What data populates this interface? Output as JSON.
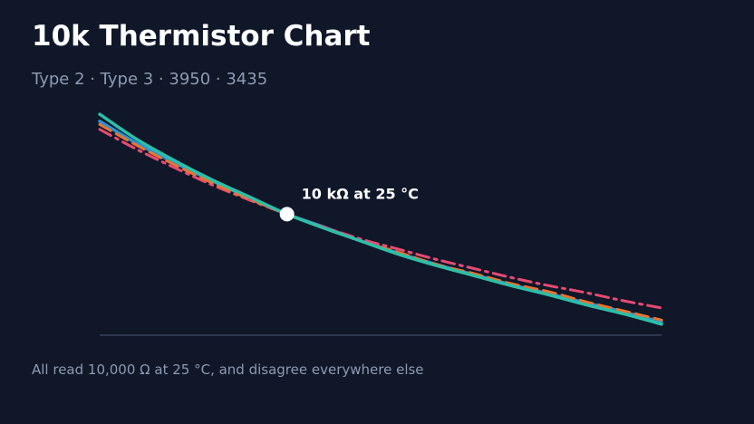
{
  "header": {
    "title": "10k Thermistor Chart",
    "subtitle": "Type 2 · Type 3 · 3950 · 3435"
  },
  "footer": {
    "caption": "All read 10,000 Ω at 25 °C, and disagree everywhere else"
  },
  "chart_data": {
    "type": "line",
    "title": "10k Thermistor Chart",
    "subtitle": "Type 2 · Type 3 · 3950 · 3435",
    "xlabel": "",
    "ylabel": "",
    "grid": false,
    "legend": "none",
    "note": "All read 10,000 Ω at 25 °C, and disagree everywhere else",
    "x": [
      0,
      5,
      10,
      15,
      20,
      25,
      30,
      35,
      40,
      45,
      50,
      55,
      60,
      65,
      70,
      75
    ],
    "xlim": [
      0,
      75
    ],
    "ylim": [
      0,
      22
    ],
    "series": [
      {
        "values": [
          21.9,
          19.4,
          17.3,
          15.4,
          13.7,
          12.0,
          10.6,
          9.3,
          8.0,
          6.9,
          5.9,
          4.9,
          4.0,
          3.0,
          2.1,
          1.1
        ],
        "color": "#2bbfa9",
        "style": "solid"
      },
      {
        "values": [
          20.9,
          18.8,
          16.9,
          15.1,
          13.5,
          12.0,
          10.6,
          9.3,
          8.2,
          7.0,
          6.1,
          5.1,
          4.3,
          3.3,
          2.4,
          1.5
        ],
        "color": "#e8742e",
        "style": "dashed"
      },
      {
        "values": [
          20.4,
          18.4,
          16.6,
          14.9,
          13.4,
          12.0,
          10.7,
          9.5,
          8.5,
          7.5,
          6.6,
          5.7,
          4.9,
          4.2,
          3.4,
          2.7
        ],
        "color": "#e84a72",
        "style": "dashdot"
      },
      {
        "values": [
          21.2,
          19.0,
          17.1,
          15.3,
          13.6,
          12.0,
          10.7,
          9.3,
          8.1,
          7.0,
          6.0,
          5.0,
          4.1,
          3.2,
          2.3,
          1.3
        ],
        "color": "#2a93d8",
        "style": "solid"
      }
    ],
    "annotations": [
      {
        "x": 25,
        "y": 12.0,
        "text": "10 kΩ at 25 °C"
      }
    ]
  }
}
